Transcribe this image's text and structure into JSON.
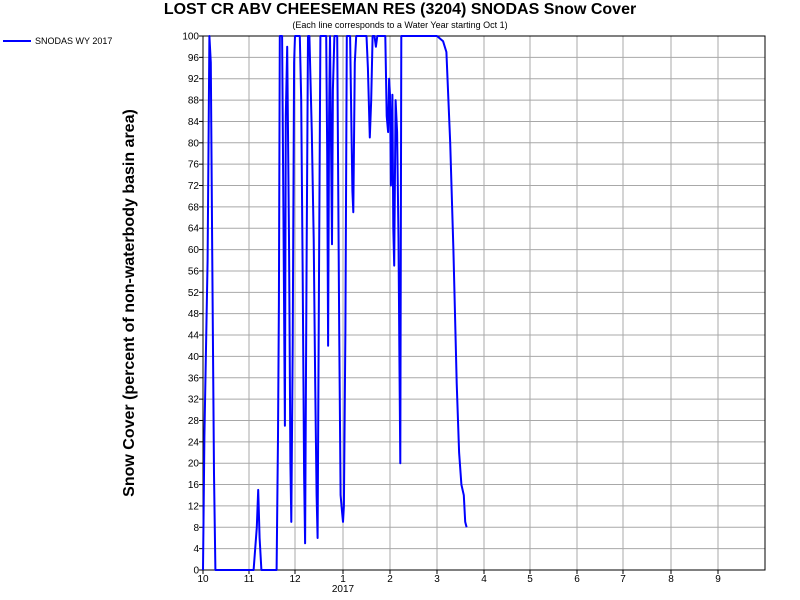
{
  "chart_data": {
    "type": "line",
    "title": "LOST CR ABV CHEESEMAN RES (3204) SNODAS Snow Cover",
    "subtitle": "(Each line corresponds to a Water Year starting Oct 1)",
    "ylabel": "Snow Cover (percent of non-waterbody basin area)",
    "xlabel": "",
    "ylim": [
      0,
      100
    ],
    "yticks": [
      "0",
      "4",
      "8",
      "12",
      "16",
      "20",
      "24",
      "28",
      "32",
      "36",
      "40",
      "44",
      "48",
      "52",
      "56",
      "60",
      "64",
      "68",
      "72",
      "76",
      "80",
      "84",
      "88",
      "92",
      "96",
      "100"
    ],
    "xticks": [
      "10",
      "11",
      "12",
      "1",
      "2",
      "3",
      "4",
      "5",
      "6",
      "7",
      "8",
      "9"
    ],
    "xtick_sublabel": "2017",
    "xlim": [
      10,
      22
    ],
    "grid": true,
    "legend_position": "top-left",
    "series": [
      {
        "name": "SNODAS WY 2017",
        "color": "#0000ff",
        "points": [
          [
            10.0,
            0
          ],
          [
            10.03,
            25
          ],
          [
            10.1,
            58
          ],
          [
            10.14,
            100
          ],
          [
            10.17,
            95
          ],
          [
            10.2,
            60
          ],
          [
            10.24,
            18
          ],
          [
            10.27,
            0
          ],
          [
            10.4,
            0
          ],
          [
            11.0,
            0
          ],
          [
            11.1,
            0
          ],
          [
            11.17,
            8
          ],
          [
            11.2,
            15
          ],
          [
            11.23,
            6
          ],
          [
            11.27,
            0
          ],
          [
            11.6,
            0
          ],
          [
            11.63,
            25
          ],
          [
            11.65,
            50
          ],
          [
            11.67,
            100
          ],
          [
            11.72,
            100
          ],
          [
            11.75,
            65
          ],
          [
            11.78,
            27
          ],
          [
            11.8,
            85
          ],
          [
            11.83,
            98
          ],
          [
            11.87,
            62
          ],
          [
            11.9,
            20
          ],
          [
            11.92,
            9
          ],
          [
            11.95,
            42
          ],
          [
            11.98,
            95
          ],
          [
            12.0,
            100
          ],
          [
            12.1,
            100
          ],
          [
            12.13,
            88
          ],
          [
            12.16,
            55
          ],
          [
            12.19,
            18
          ],
          [
            12.21,
            5
          ],
          [
            12.24,
            55
          ],
          [
            12.27,
            100
          ],
          [
            12.3,
            100
          ],
          [
            12.35,
            82
          ],
          [
            12.39,
            62
          ],
          [
            12.42,
            35
          ],
          [
            12.45,
            14
          ],
          [
            12.47,
            6
          ],
          [
            12.5,
            55
          ],
          [
            12.53,
            100
          ],
          [
            12.65,
            100
          ],
          [
            12.67,
            78
          ],
          [
            12.69,
            42
          ],
          [
            12.71,
            85
          ],
          [
            12.73,
            100
          ],
          [
            12.77,
            61
          ],
          [
            12.79,
            90
          ],
          [
            12.82,
            100
          ],
          [
            12.88,
            100
          ],
          [
            12.92,
            45
          ],
          [
            12.95,
            14
          ],
          [
            12.98,
            11
          ],
          [
            13.0,
            9
          ],
          [
            13.02,
            12
          ],
          [
            13.05,
            45
          ],
          [
            13.08,
            100
          ],
          [
            13.15,
            100
          ],
          [
            13.18,
            82
          ],
          [
            13.2,
            71
          ],
          [
            13.22,
            67
          ],
          [
            13.25,
            95
          ],
          [
            13.28,
            100
          ],
          [
            13.5,
            100
          ],
          [
            13.53,
            94
          ],
          [
            13.57,
            81
          ],
          [
            13.6,
            88
          ],
          [
            13.63,
            100
          ],
          [
            13.67,
            100
          ],
          [
            13.7,
            98
          ],
          [
            13.73,
            100
          ],
          [
            13.9,
            100
          ],
          [
            13.93,
            85
          ],
          [
            13.96,
            82
          ],
          [
            13.98,
            92
          ],
          [
            14.0,
            89
          ],
          [
            14.02,
            72
          ],
          [
            14.05,
            89
          ],
          [
            14.07,
            64
          ],
          [
            14.09,
            57
          ],
          [
            14.12,
            88
          ],
          [
            14.15,
            82
          ],
          [
            14.18,
            62
          ],
          [
            14.2,
            40
          ],
          [
            14.22,
            20
          ],
          [
            14.24,
            100
          ],
          [
            14.3,
            100
          ],
          [
            15.0,
            100
          ],
          [
            15.13,
            99
          ],
          [
            15.2,
            97
          ],
          [
            15.28,
            80
          ],
          [
            15.35,
            60
          ],
          [
            15.42,
            35
          ],
          [
            15.47,
            22
          ],
          [
            15.52,
            16
          ],
          [
            15.57,
            14
          ],
          [
            15.6,
            9
          ],
          [
            15.63,
            8
          ]
        ]
      }
    ]
  }
}
